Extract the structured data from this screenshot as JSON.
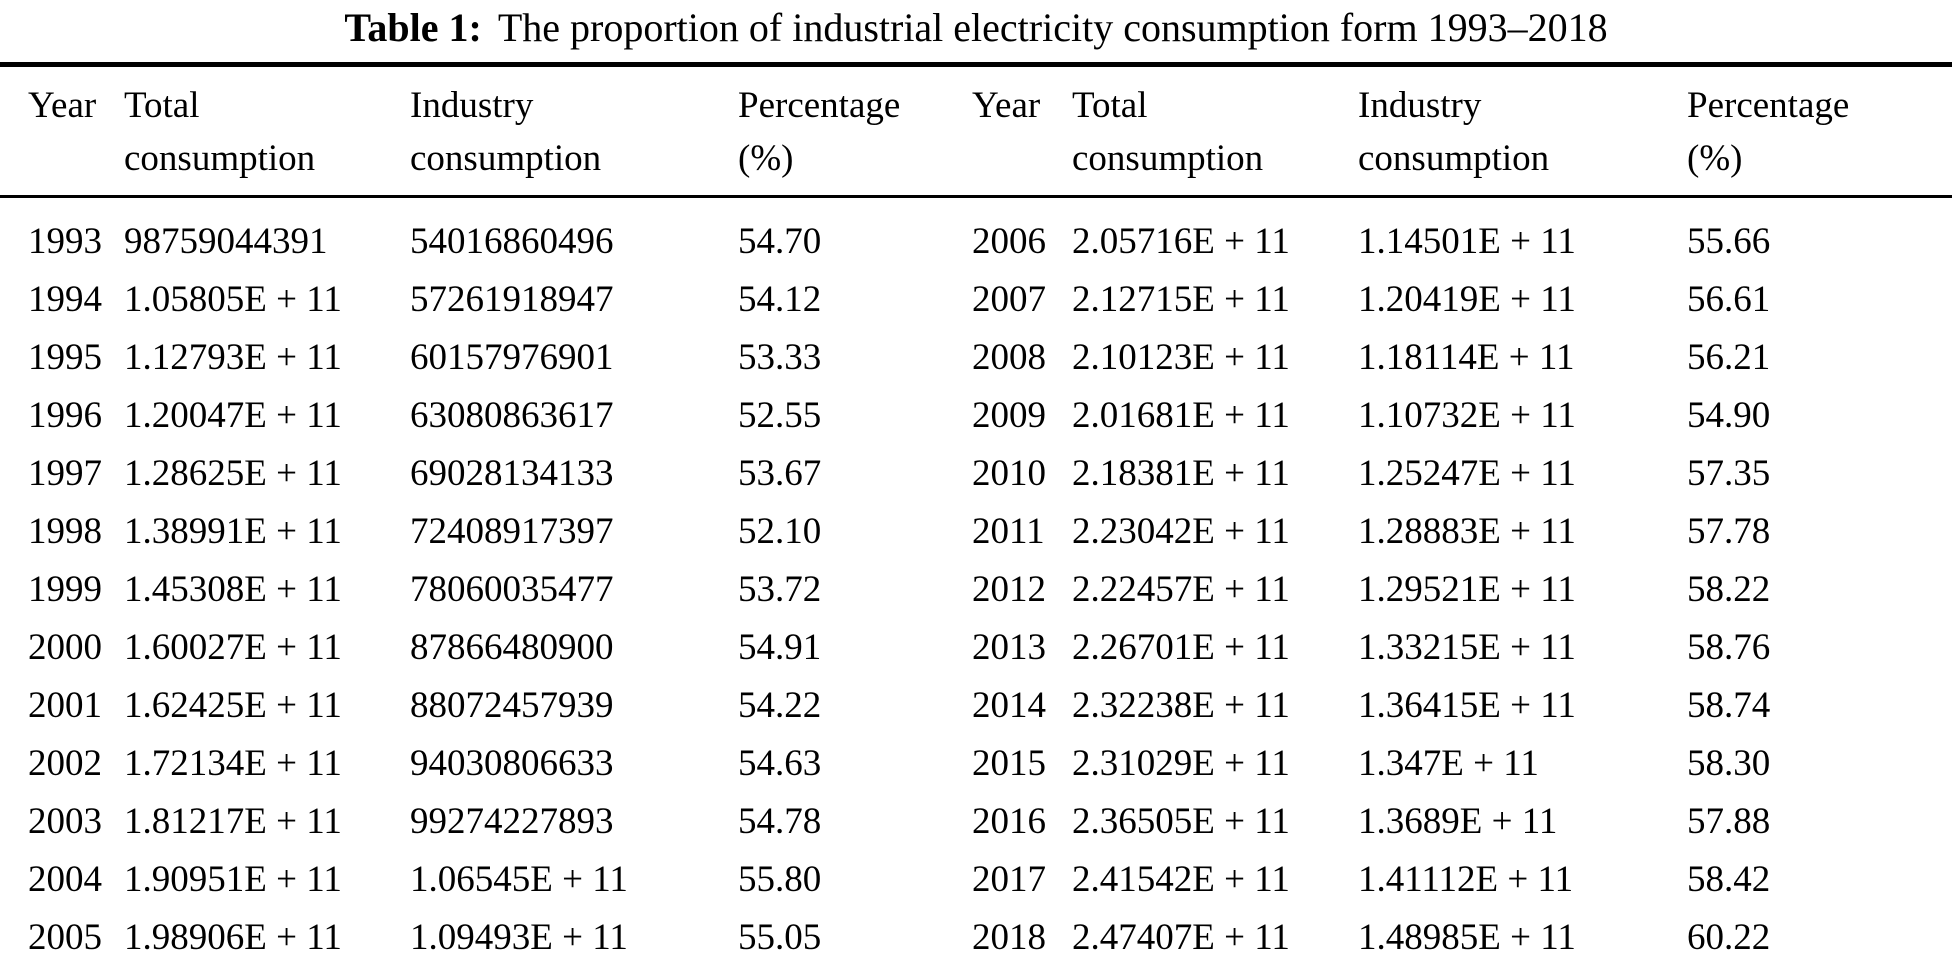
{
  "caption": {
    "label": "Table 1:",
    "text": "The proportion of industrial electricity consumption form 1993–2018"
  },
  "table": {
    "columns": [
      "Year",
      "Total\nconsumption",
      "Industry\nconsumption",
      "Percentage\n(%)",
      "Year",
      "Total\nconsumption",
      "Industry\nconsumption",
      "Percentage\n(%)"
    ],
    "rows": [
      [
        "1993",
        "98759044391",
        "54016860496",
        "54.70",
        "2006",
        "2.05716E + 11",
        "1.14501E + 11",
        "55.66"
      ],
      [
        "1994",
        "1.05805E + 11",
        "57261918947",
        "54.12",
        "2007",
        "2.12715E + 11",
        "1.20419E + 11",
        "56.61"
      ],
      [
        "1995",
        "1.12793E + 11",
        "60157976901",
        "53.33",
        "2008",
        "2.10123E + 11",
        "1.18114E + 11",
        "56.21"
      ],
      [
        "1996",
        "1.20047E + 11",
        "63080863617",
        "52.55",
        "2009",
        "2.01681E + 11",
        "1.10732E + 11",
        "54.90"
      ],
      [
        "1997",
        "1.28625E + 11",
        "69028134133",
        "53.67",
        "2010",
        "2.18381E + 11",
        "1.25247E + 11",
        "57.35"
      ],
      [
        "1998",
        "1.38991E + 11",
        "72408917397",
        "52.10",
        "2011",
        "2.23042E + 11",
        "1.28883E + 11",
        "57.78"
      ],
      [
        "1999",
        "1.45308E + 11",
        "78060035477",
        "53.72",
        "2012",
        "2.22457E + 11",
        "1.29521E + 11",
        "58.22"
      ],
      [
        "2000",
        "1.60027E + 11",
        "87866480900",
        "54.91",
        "2013",
        "2.26701E + 11",
        "1.33215E + 11",
        "58.76"
      ],
      [
        "2001",
        "1.62425E + 11",
        "88072457939",
        "54.22",
        "2014",
        "2.32238E + 11",
        "1.36415E + 11",
        "58.74"
      ],
      [
        "2002",
        "1.72134E + 11",
        "94030806633",
        "54.63",
        "2015",
        "2.31029E + 11",
        "1.347E + 11",
        "58.30"
      ],
      [
        "2003",
        "1.81217E + 11",
        "99274227893",
        "54.78",
        "2016",
        "2.36505E + 11",
        "1.3689E + 11",
        "57.88"
      ],
      [
        "2004",
        "1.90951E + 11",
        "1.06545E + 11",
        "55.80",
        "2017",
        "2.41542E + 11",
        "1.41112E + 11",
        "58.42"
      ],
      [
        "2005",
        "1.98906E + 11",
        "1.09493E + 11",
        "55.05",
        "2018",
        "2.47407E + 11",
        "1.48985E + 11",
        "60.22"
      ]
    ]
  },
  "colors": {
    "text": "#000000",
    "background": "#ffffff",
    "rule": "#000000"
  }
}
